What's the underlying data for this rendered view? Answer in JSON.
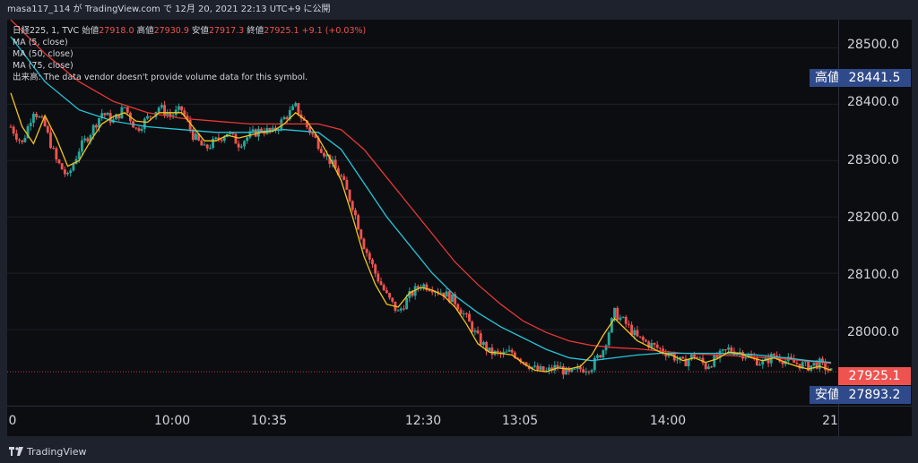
{
  "header": {
    "text": "masa117_114 が TradingView.com で 12月 20, 2021 22:13 UTC+9 に公開"
  },
  "legend": {
    "symbol": "日経225, 1, TVC",
    "open_label": "始値",
    "open": "27918.0",
    "high_label": "高値",
    "high": "27930.9",
    "low_label": "安値",
    "low": "27917.3",
    "close_label": "終値",
    "close": "27925.1",
    "change": "+9.1 (+0.03%)",
    "ma5": "MA (5, close)",
    "ma50": "MA (50, close)",
    "ma75": "MA (75, close)",
    "volume_note": "出来高: The data vendor doesn't provide volume data for this symbol."
  },
  "price_axis": {
    "ticks": [
      "28500.0",
      "28400.0",
      "28300.0",
      "28200.0",
      "28100.0",
      "28000.0"
    ]
  },
  "time_axis": {
    "ticks": [
      "0",
      "10:00",
      "10:35",
      "12:30",
      "13:05",
      "14:00",
      "21"
    ]
  },
  "tags": {
    "high_label": "高値",
    "high_value": "28441.5",
    "current_value": "27925.1",
    "low_label": "安値",
    "low_value": "27893.2"
  },
  "footer": {
    "brand": "TradingView"
  },
  "colors": {
    "up": "#26a69a",
    "down": "#ef5350",
    "ma5": "#f5c518",
    "ma50": "#26c6da",
    "ma75": "#e53935",
    "tag_bg": "#2f4a8a",
    "current_bg": "#ef5350"
  },
  "chart_data": {
    "type": "candlestick",
    "title": "日経225, 1, TVC",
    "xlabel": "",
    "ylabel": "",
    "ylim": [
      27865,
      28550
    ],
    "price_ticks": [
      28500,
      28400,
      28300,
      28200,
      28100,
      28000
    ],
    "time_ticks": [
      "0",
      "10:00",
      "10:35",
      "12:30",
      "13:05",
      "14:00",
      "21"
    ],
    "last_price": 27925.1,
    "high": 28441.5,
    "low": 27893.2,
    "close_path": [
      [
        0,
        28360
      ],
      [
        2,
        28330
      ],
      [
        4,
        28390
      ],
      [
        6,
        28360
      ],
      [
        8,
        28300
      ],
      [
        10,
        28270
      ],
      [
        12,
        28320
      ],
      [
        14,
        28350
      ],
      [
        16,
        28385
      ],
      [
        18,
        28370
      ],
      [
        20,
        28395
      ],
      [
        22,
        28355
      ],
      [
        24,
        28375
      ],
      [
        26,
        28395
      ],
      [
        28,
        28380
      ],
      [
        30,
        28390
      ],
      [
        32,
        28345
      ],
      [
        34,
        28320
      ],
      [
        36,
        28335
      ],
      [
        38,
        28350
      ],
      [
        40,
        28330
      ],
      [
        42,
        28345
      ],
      [
        44,
        28355
      ],
      [
        46,
        28350
      ],
      [
        48,
        28375
      ],
      [
        50,
        28395
      ],
      [
        52,
        28360
      ],
      [
        54,
        28330
      ],
      [
        56,
        28300
      ],
      [
        58,
        28270
      ],
      [
        60,
        28220
      ],
      [
        62,
        28150
      ],
      [
        64,
        28100
      ],
      [
        66,
        28060
      ],
      [
        68,
        28030
      ],
      [
        70,
        28060
      ],
      [
        72,
        28080
      ],
      [
        74,
        28075
      ],
      [
        76,
        28065
      ],
      [
        78,
        28050
      ],
      [
        80,
        28020
      ],
      [
        82,
        27985
      ],
      [
        84,
        27960
      ],
      [
        86,
        27955
      ],
      [
        88,
        27960
      ],
      [
        90,
        27945
      ],
      [
        92,
        27930
      ],
      [
        94,
        27925
      ],
      [
        96,
        27935
      ],
      [
        98,
        27920
      ],
      [
        100,
        27930
      ],
      [
        102,
        27935
      ],
      [
        104,
        27965
      ],
      [
        106,
        28030
      ],
      [
        108,
        28010
      ],
      [
        110,
        27985
      ],
      [
        112,
        27975
      ],
      [
        114,
        27965
      ],
      [
        116,
        27955
      ],
      [
        118,
        27940
      ],
      [
        120,
        27955
      ],
      [
        122,
        27935
      ],
      [
        124,
        27950
      ],
      [
        126,
        27965
      ],
      [
        128,
        27960
      ],
      [
        130,
        27950
      ],
      [
        132,
        27940
      ],
      [
        134,
        27955
      ],
      [
        136,
        27945
      ],
      [
        138,
        27940
      ],
      [
        140,
        27935
      ],
      [
        142,
        27940
      ],
      [
        144,
        27925
      ]
    ],
    "ma5_path": [
      [
        0,
        28420
      ],
      [
        2,
        28360
      ],
      [
        4,
        28330
      ],
      [
        6,
        28380
      ],
      [
        8,
        28340
      ],
      [
        10,
        28290
      ],
      [
        12,
        28300
      ],
      [
        14,
        28335
      ],
      [
        16,
        28365
      ],
      [
        18,
        28378
      ],
      [
        20,
        28385
      ],
      [
        22,
        28370
      ],
      [
        24,
        28368
      ],
      [
        26,
        28385
      ],
      [
        28,
        28385
      ],
      [
        30,
        28385
      ],
      [
        32,
        28360
      ],
      [
        34,
        28335
      ],
      [
        36,
        28335
      ],
      [
        38,
        28345
      ],
      [
        40,
        28340
      ],
      [
        42,
        28345
      ],
      [
        44,
        28350
      ],
      [
        46,
        28352
      ],
      [
        48,
        28365
      ],
      [
        50,
        28385
      ],
      [
        52,
        28370
      ],
      [
        54,
        28340
      ],
      [
        56,
        28305
      ],
      [
        58,
        28265
      ],
      [
        60,
        28200
      ],
      [
        62,
        28130
      ],
      [
        64,
        28080
      ],
      [
        66,
        28045
      ],
      [
        68,
        28040
      ],
      [
        70,
        28065
      ],
      [
        72,
        28075
      ],
      [
        74,
        28070
      ],
      [
        76,
        28060
      ],
      [
        78,
        28040
      ],
      [
        80,
        28010
      ],
      [
        82,
        27975
      ],
      [
        84,
        27960
      ],
      [
        86,
        27958
      ],
      [
        88,
        27955
      ],
      [
        90,
        27940
      ],
      [
        92,
        27928
      ],
      [
        94,
        27925
      ],
      [
        96,
        27932
      ],
      [
        98,
        27930
      ],
      [
        100,
        27935
      ],
      [
        102,
        27955
      ],
      [
        104,
        27990
      ],
      [
        106,
        28020
      ],
      [
        108,
        28000
      ],
      [
        110,
        27980
      ],
      [
        112,
        27970
      ],
      [
        114,
        27960
      ],
      [
        116,
        27955
      ],
      [
        118,
        27945
      ],
      [
        120,
        27950
      ],
      [
        122,
        27942
      ],
      [
        124,
        27948
      ],
      [
        126,
        27960
      ],
      [
        128,
        27958
      ],
      [
        130,
        27950
      ],
      [
        132,
        27945
      ],
      [
        134,
        27950
      ],
      [
        136,
        27942
      ],
      [
        138,
        27935
      ],
      [
        140,
        27930
      ],
      [
        142,
        27935
      ],
      [
        144,
        27928
      ]
    ],
    "ma50_path": [
      [
        0,
        28520
      ],
      [
        6,
        28440
      ],
      [
        12,
        28390
      ],
      [
        18,
        28370
      ],
      [
        24,
        28360
      ],
      [
        30,
        28355
      ],
      [
        36,
        28350
      ],
      [
        42,
        28350
      ],
      [
        48,
        28355
      ],
      [
        54,
        28350
      ],
      [
        58,
        28320
      ],
      [
        62,
        28260
      ],
      [
        66,
        28200
      ],
      [
        70,
        28150
      ],
      [
        74,
        28100
      ],
      [
        78,
        28060
      ],
      [
        82,
        28030
      ],
      [
        86,
        28005
      ],
      [
        90,
        27985
      ],
      [
        94,
        27965
      ],
      [
        98,
        27950
      ],
      [
        102,
        27945
      ],
      [
        106,
        27950
      ],
      [
        110,
        27955
      ],
      [
        114,
        27958
      ],
      [
        118,
        27958
      ],
      [
        124,
        27958
      ],
      [
        130,
        27956
      ],
      [
        136,
        27950
      ],
      [
        140,
        27945
      ],
      [
        144,
        27942
      ]
    ],
    "ma75_path": [
      [
        0,
        28550
      ],
      [
        6,
        28490
      ],
      [
        12,
        28440
      ],
      [
        18,
        28405
      ],
      [
        24,
        28385
      ],
      [
        30,
        28375
      ],
      [
        36,
        28370
      ],
      [
        42,
        28365
      ],
      [
        48,
        28365
      ],
      [
        54,
        28365
      ],
      [
        58,
        28355
      ],
      [
        62,
        28320
      ],
      [
        66,
        28270
      ],
      [
        70,
        28220
      ],
      [
        74,
        28170
      ],
      [
        78,
        28120
      ],
      [
        82,
        28080
      ],
      [
        86,
        28045
      ],
      [
        90,
        28015
      ],
      [
        94,
        27995
      ],
      [
        98,
        27980
      ],
      [
        102,
        27972
      ],
      [
        106,
        27968
      ],
      [
        110,
        27966
      ],
      [
        114,
        27962
      ],
      [
        118,
        27958
      ],
      [
        124,
        27955
      ],
      [
        130,
        27952
      ],
      [
        136,
        27948
      ],
      [
        140,
        27944
      ],
      [
        144,
        27940
      ]
    ]
  }
}
